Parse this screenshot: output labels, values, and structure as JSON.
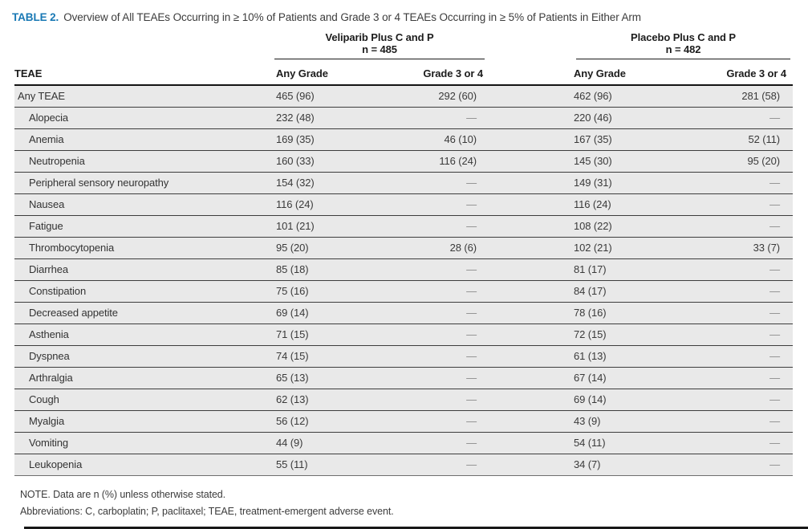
{
  "title": {
    "label": "TABLE 2.",
    "text": "Overview of All TEAEs Occurring in ≥ 10% of Patients and Grade 3 or 4 TEAEs Occurring in ≥ 5% of Patients in Either Arm"
  },
  "groups": [
    {
      "name": "Veliparib Plus C and P",
      "n": "n = 485"
    },
    {
      "name": "Placebo Plus C and P",
      "n": "n = 482"
    }
  ],
  "column_headers": {
    "teae": "TEAE",
    "any_grade_1": "Any Grade",
    "grade34_1": "Grade 3 or 4",
    "any_grade_2": "Any Grade",
    "grade34_2": "Grade 3 or 4"
  },
  "rows": [
    {
      "label": "Any TEAE",
      "indent": false,
      "veliparib_any": "465 (96)",
      "veliparib_g34": "292 (60)",
      "placebo_any": "462 (96)",
      "placebo_g34": "281 (58)"
    },
    {
      "label": "Alopecia",
      "indent": true,
      "veliparib_any": "232 (48)",
      "veliparib_g34": "—",
      "placebo_any": "220 (46)",
      "placebo_g34": "—"
    },
    {
      "label": "Anemia",
      "indent": true,
      "veliparib_any": "169 (35)",
      "veliparib_g34": "46 (10)",
      "placebo_any": "167 (35)",
      "placebo_g34": "52 (11)"
    },
    {
      "label": "Neutropenia",
      "indent": true,
      "veliparib_any": "160 (33)",
      "veliparib_g34": "116 (24)",
      "placebo_any": "145 (30)",
      "placebo_g34": "95 (20)"
    },
    {
      "label": "Peripheral sensory neuropathy",
      "indent": true,
      "veliparib_any": "154 (32)",
      "veliparib_g34": "—",
      "placebo_any": "149 (31)",
      "placebo_g34": "—"
    },
    {
      "label": "Nausea",
      "indent": true,
      "veliparib_any": "116 (24)",
      "veliparib_g34": "—",
      "placebo_any": "116 (24)",
      "placebo_g34": "—"
    },
    {
      "label": "Fatigue",
      "indent": true,
      "veliparib_any": "101 (21)",
      "veliparib_g34": "—",
      "placebo_any": "108 (22)",
      "placebo_g34": "—"
    },
    {
      "label": "Thrombocytopenia",
      "indent": true,
      "veliparib_any": "95 (20)",
      "veliparib_g34": "28 (6)",
      "placebo_any": "102 (21)",
      "placebo_g34": "33 (7)"
    },
    {
      "label": "Diarrhea",
      "indent": true,
      "veliparib_any": "85 (18)",
      "veliparib_g34": "—",
      "placebo_any": "81 (17)",
      "placebo_g34": "—"
    },
    {
      "label": "Constipation",
      "indent": true,
      "veliparib_any": "75 (16)",
      "veliparib_g34": "—",
      "placebo_any": "84 (17)",
      "placebo_g34": "—"
    },
    {
      "label": "Decreased appetite",
      "indent": true,
      "veliparib_any": "69 (14)",
      "veliparib_g34": "—",
      "placebo_any": "78 (16)",
      "placebo_g34": "—"
    },
    {
      "label": "Asthenia",
      "indent": true,
      "veliparib_any": "71 (15)",
      "veliparib_g34": "—",
      "placebo_any": "72 (15)",
      "placebo_g34": "—"
    },
    {
      "label": "Dyspnea",
      "indent": true,
      "veliparib_any": "74 (15)",
      "veliparib_g34": "—",
      "placebo_any": "61 (13)",
      "placebo_g34": "—"
    },
    {
      "label": "Arthralgia",
      "indent": true,
      "veliparib_any": "65 (13)",
      "veliparib_g34": "—",
      "placebo_any": "67 (14)",
      "placebo_g34": "—"
    },
    {
      "label": "Cough",
      "indent": true,
      "veliparib_any": "62 (13)",
      "veliparib_g34": "—",
      "placebo_any": "69 (14)",
      "placebo_g34": "—"
    },
    {
      "label": "Myalgia",
      "indent": true,
      "veliparib_any": "56 (12)",
      "veliparib_g34": "—",
      "placebo_any": "43 (9)",
      "placebo_g34": "—"
    },
    {
      "label": "Vomiting",
      "indent": true,
      "veliparib_any": "44 (9)",
      "veliparib_g34": "—",
      "placebo_any": "54 (11)",
      "placebo_g34": "—"
    },
    {
      "label": "Leukopenia",
      "indent": true,
      "veliparib_any": "55 (11)",
      "veliparib_g34": "—",
      "placebo_any": "34 (7)",
      "placebo_g34": "—"
    }
  ],
  "notes": {
    "note_line": "NOTE. Data are n (%) unless otherwise stated.",
    "abbreviations_line": "Abbreviations: C, carboplatin; P, paclitaxel; TEAE, treatment-emergent adverse event."
  },
  "colors": {
    "table_label_blue": "#1878b4",
    "header_ink": "#1c1c1c",
    "body_ink": "#3a3a3a",
    "row_background": "#e9e9e9",
    "row_separator": "#3d3d3d",
    "dash_gray": "#8a8a8a"
  }
}
